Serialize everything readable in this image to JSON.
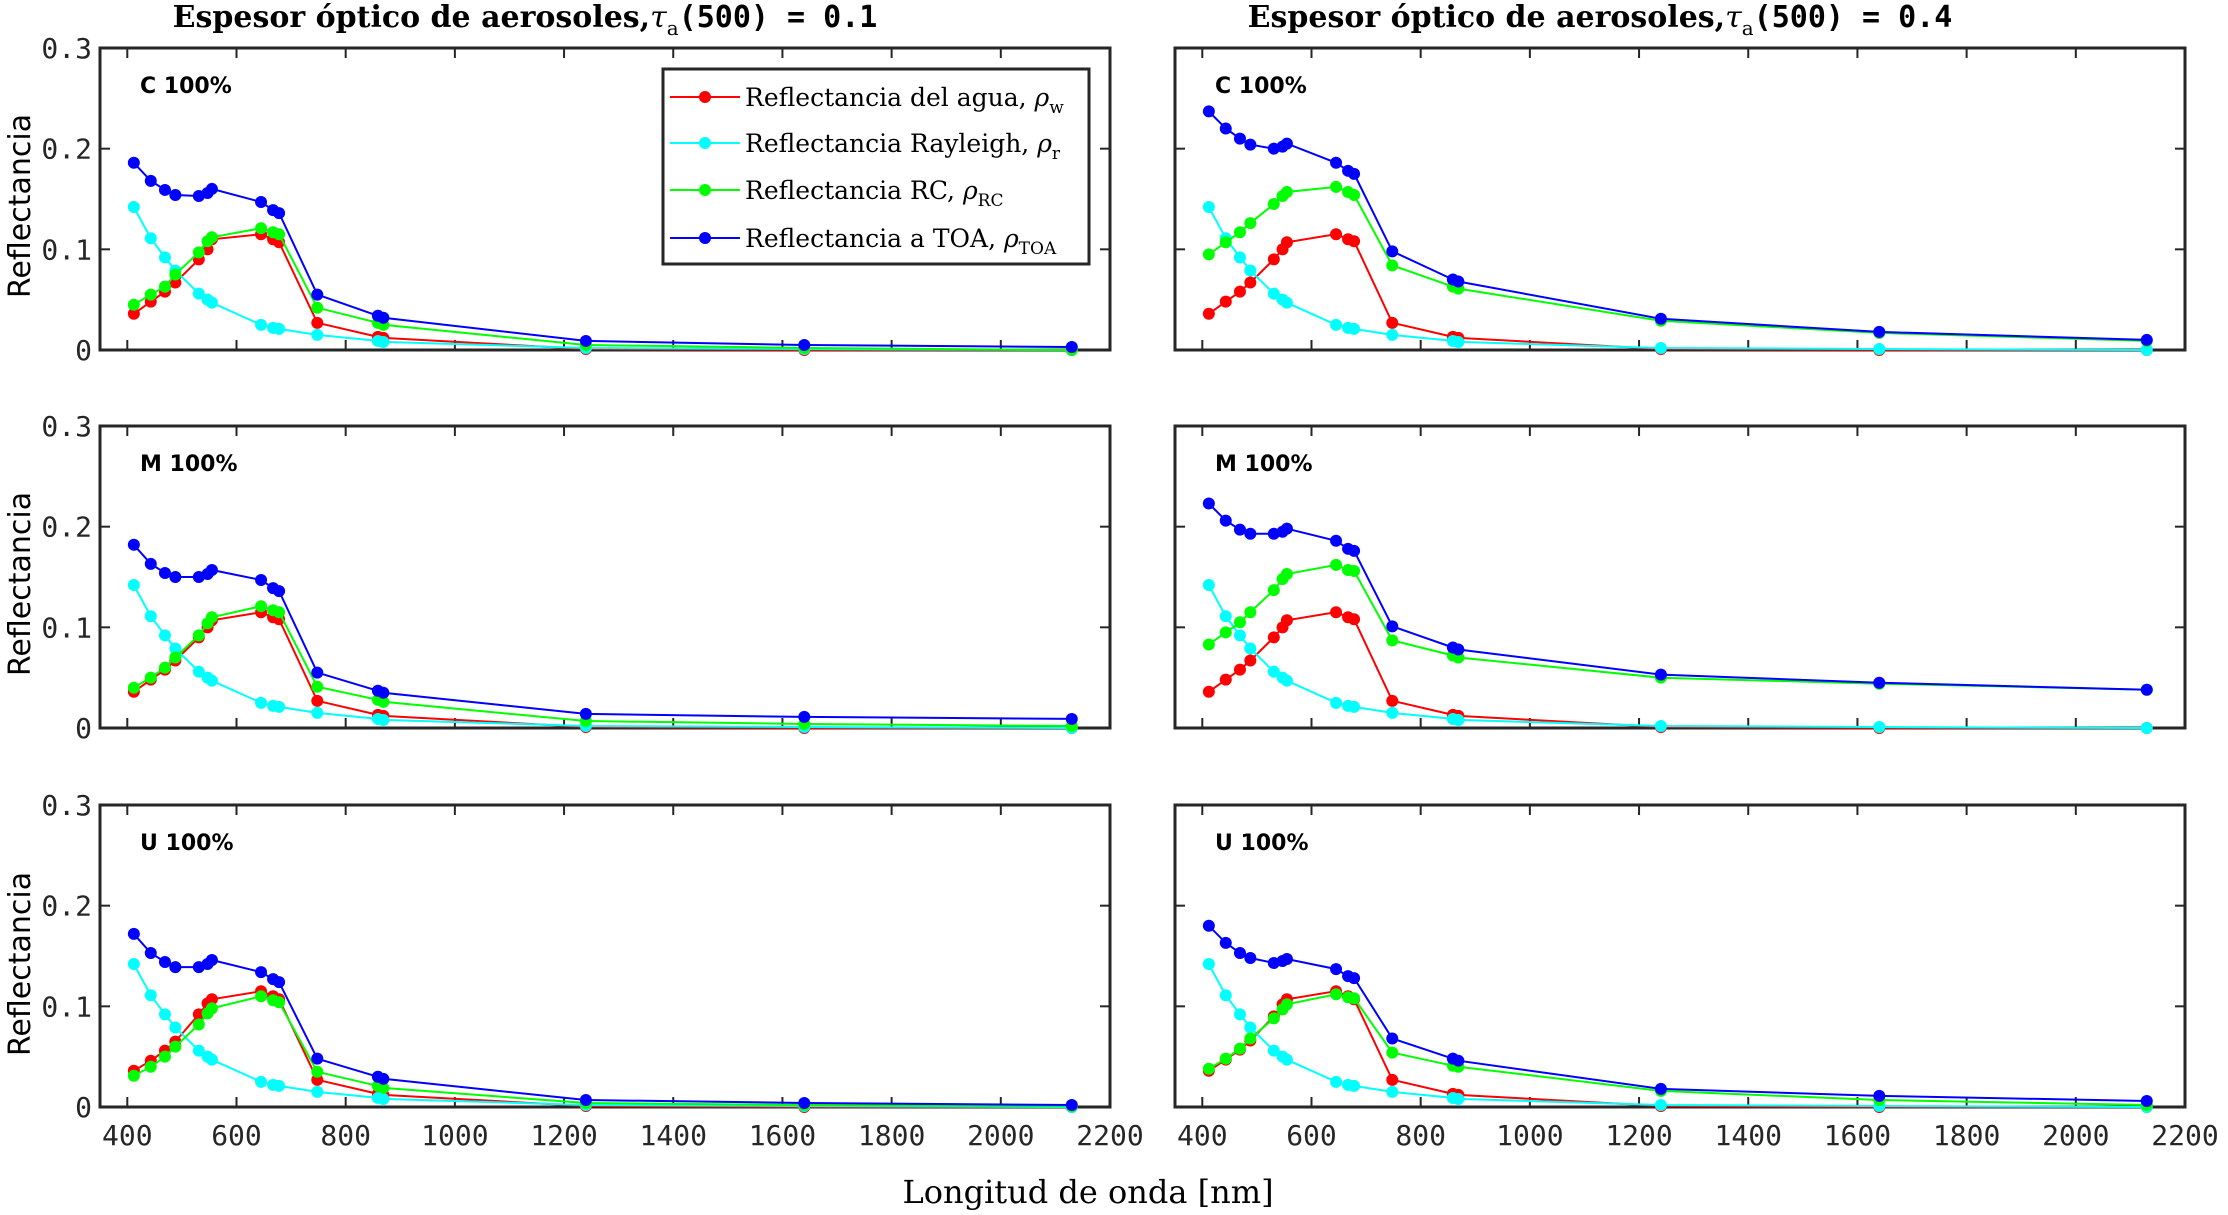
{
  "figure": {
    "columns": [
      {
        "title_prefix": "Espesor óptico de aerosoles,",
        "tau": "τ",
        "tau_sub": "a",
        "title_suffix": "(500) = 0.1"
      },
      {
        "title_prefix": "Espesor óptico de aerosoles,",
        "tau": "τ",
        "tau_sub": "a",
        "title_suffix": "(500) = 0.4"
      }
    ],
    "ylabel": "Reflectancia",
    "xlabel": "Longitud de onda [nm]",
    "legend": [
      {
        "label": "Reflectancia del agua, ",
        "rho": "ρ",
        "sub": "w",
        "color": "#ff0000"
      },
      {
        "label": "Reflectancia Rayleigh, ",
        "rho": "ρ",
        "sub": "r",
        "color": "#00ffff"
      },
      {
        "label": "Reflectancia RC, ",
        "rho": "ρ",
        "sub": "RC",
        "color": "#00ff00"
      },
      {
        "label": "Reflectancia a TOA, ",
        "rho": "ρ",
        "sub": "TOA",
        "color": "#0000ff"
      }
    ],
    "colors": {
      "water": "#ff0000",
      "rayleigh": "#00ffff",
      "rc": "#00ff00",
      "toa": "#0000ff"
    }
  },
  "chart_data": [
    {
      "type": "line",
      "panel_label": "C 100%",
      "xlim": [
        350,
        2200
      ],
      "ylim": [
        0,
        0.3
      ],
      "xticks": [
        "400",
        "600",
        "800",
        "1000",
        "1200",
        "1400",
        "1600",
        "1800",
        "2000",
        "2200"
      ],
      "yticks": [
        "0",
        "0.1",
        "0.2",
        "0.3"
      ],
      "x": [
        412,
        443,
        469,
        488,
        531,
        547,
        555,
        645,
        667,
        678,
        748,
        859,
        869,
        1240,
        1640,
        2130
      ],
      "series": [
        {
          "name": "Reflectancia del agua",
          "color": "#ff0000",
          "values": [
            0.036,
            0.048,
            0.058,
            0.067,
            0.09,
            0.1,
            0.11,
            0.115,
            0.11,
            0.107,
            0.027,
            0.013,
            0.012,
            0.001,
            0.0,
            0.0
          ]
        },
        {
          "name": "Reflectancia Rayleigh",
          "color": "#00ffff",
          "values": [
            0.142,
            0.111,
            0.092,
            0.079,
            0.056,
            0.05,
            0.047,
            0.025,
            0.022,
            0.021,
            0.015,
            0.009,
            0.008,
            0.002,
            0.001,
            0.0
          ]
        },
        {
          "name": "Reflectancia RC",
          "color": "#00ff00",
          "values": [
            0.045,
            0.055,
            0.063,
            0.075,
            0.097,
            0.108,
            0.112,
            0.121,
            0.117,
            0.115,
            0.042,
            0.027,
            0.025,
            0.005,
            0.002,
            0.0
          ]
        },
        {
          "name": "Reflectancia a TOA",
          "color": "#0000ff",
          "values": [
            0.186,
            0.168,
            0.159,
            0.154,
            0.153,
            0.156,
            0.16,
            0.147,
            0.139,
            0.136,
            0.055,
            0.034,
            0.032,
            0.009,
            0.005,
            0.003
          ]
        }
      ]
    },
    {
      "type": "line",
      "panel_label": "C 100%",
      "xlim": [
        350,
        2200
      ],
      "ylim": [
        0,
        0.3
      ],
      "xticks": [
        "400",
        "600",
        "800",
        "1000",
        "1200",
        "1400",
        "1600",
        "1800",
        "2000",
        "2200"
      ],
      "yticks": [
        "0",
        "0.1",
        "0.2",
        "0.3"
      ],
      "x": [
        412,
        443,
        469,
        488,
        531,
        547,
        555,
        645,
        667,
        678,
        748,
        859,
        869,
        1240,
        1640,
        2130
      ],
      "series": [
        {
          "name": "Reflectancia del agua",
          "color": "#ff0000",
          "values": [
            0.036,
            0.048,
            0.058,
            0.067,
            0.09,
            0.1,
            0.107,
            0.115,
            0.11,
            0.108,
            0.027,
            0.013,
            0.012,
            0.001,
            0.0,
            0.0
          ]
        },
        {
          "name": "Reflectancia Rayleigh",
          "color": "#00ffff",
          "values": [
            0.142,
            0.111,
            0.092,
            0.079,
            0.056,
            0.05,
            0.047,
            0.025,
            0.022,
            0.021,
            0.015,
            0.009,
            0.008,
            0.002,
            0.001,
            0.0
          ]
        },
        {
          "name": "Reflectancia RC",
          "color": "#00ff00",
          "values": [
            0.095,
            0.107,
            0.117,
            0.126,
            0.145,
            0.153,
            0.157,
            0.162,
            0.157,
            0.154,
            0.084,
            0.063,
            0.061,
            0.029,
            0.017,
            0.009
          ]
        },
        {
          "name": "Reflectancia a TOA",
          "color": "#0000ff",
          "values": [
            0.237,
            0.22,
            0.21,
            0.204,
            0.2,
            0.202,
            0.205,
            0.186,
            0.178,
            0.175,
            0.098,
            0.07,
            0.068,
            0.031,
            0.018,
            0.01
          ]
        }
      ]
    },
    {
      "type": "line",
      "panel_label": "M 100%",
      "xlim": [
        350,
        2200
      ],
      "ylim": [
        0,
        0.3
      ],
      "xticks": [
        "400",
        "600",
        "800",
        "1000",
        "1200",
        "1400",
        "1600",
        "1800",
        "2000",
        "2200"
      ],
      "yticks": [
        "0",
        "0.1",
        "0.2",
        "0.3"
      ],
      "x": [
        412,
        443,
        469,
        488,
        531,
        547,
        555,
        645,
        667,
        678,
        748,
        859,
        869,
        1240,
        1640,
        2130
      ],
      "series": [
        {
          "name": "Reflectancia del agua",
          "color": "#ff0000",
          "values": [
            0.036,
            0.048,
            0.058,
            0.067,
            0.09,
            0.1,
            0.107,
            0.115,
            0.11,
            0.108,
            0.027,
            0.013,
            0.012,
            0.001,
            0.0,
            0.0
          ]
        },
        {
          "name": "Reflectancia Rayleigh",
          "color": "#00ffff",
          "values": [
            0.142,
            0.111,
            0.092,
            0.079,
            0.056,
            0.05,
            0.047,
            0.025,
            0.022,
            0.021,
            0.015,
            0.009,
            0.008,
            0.002,
            0.001,
            0.0
          ]
        },
        {
          "name": "Reflectancia RC",
          "color": "#00ff00",
          "values": [
            0.04,
            0.05,
            0.06,
            0.07,
            0.092,
            0.104,
            0.11,
            0.121,
            0.117,
            0.115,
            0.041,
            0.028,
            0.026,
            0.007,
            0.004,
            0.002
          ]
        },
        {
          "name": "Reflectancia a TOA",
          "color": "#0000ff",
          "values": [
            0.182,
            0.163,
            0.154,
            0.15,
            0.15,
            0.153,
            0.157,
            0.147,
            0.139,
            0.136,
            0.055,
            0.037,
            0.035,
            0.014,
            0.011,
            0.009
          ]
        }
      ]
    },
    {
      "type": "line",
      "panel_label": "M 100%",
      "xlim": [
        350,
        2200
      ],
      "ylim": [
        0,
        0.3
      ],
      "xticks": [
        "400",
        "600",
        "800",
        "1000",
        "1200",
        "1400",
        "1600",
        "1800",
        "2000",
        "2200"
      ],
      "yticks": [
        "0",
        "0.1",
        "0.2",
        "0.3"
      ],
      "x": [
        412,
        443,
        469,
        488,
        531,
        547,
        555,
        645,
        667,
        678,
        748,
        859,
        869,
        1240,
        1640,
        2130
      ],
      "series": [
        {
          "name": "Reflectancia del agua",
          "color": "#ff0000",
          "values": [
            0.036,
            0.048,
            0.058,
            0.067,
            0.09,
            0.1,
            0.107,
            0.115,
            0.11,
            0.108,
            0.027,
            0.013,
            0.012,
            0.001,
            0.0,
            0.0
          ]
        },
        {
          "name": "Reflectancia Rayleigh",
          "color": "#00ffff",
          "values": [
            0.142,
            0.111,
            0.092,
            0.079,
            0.056,
            0.05,
            0.047,
            0.025,
            0.022,
            0.021,
            0.015,
            0.009,
            0.008,
            0.002,
            0.001,
            0.0
          ]
        },
        {
          "name": "Reflectancia RC",
          "color": "#00ff00",
          "values": [
            0.083,
            0.095,
            0.105,
            0.115,
            0.137,
            0.148,
            0.153,
            0.162,
            0.157,
            0.156,
            0.087,
            0.072,
            0.07,
            0.05,
            0.044,
            0.038
          ]
        },
        {
          "name": "Reflectancia a TOA",
          "color": "#0000ff",
          "values": [
            0.223,
            0.206,
            0.197,
            0.193,
            0.193,
            0.195,
            0.198,
            0.186,
            0.178,
            0.176,
            0.101,
            0.08,
            0.078,
            0.053,
            0.045,
            0.038
          ]
        }
      ]
    },
    {
      "type": "line",
      "panel_label": "U 100%",
      "xlim": [
        350,
        2200
      ],
      "ylim": [
        0,
        0.3
      ],
      "xticks": [
        "400",
        "600",
        "800",
        "1000",
        "1200",
        "1400",
        "1600",
        "1800",
        "2000",
        "2200"
      ],
      "yticks": [
        "0",
        "0.1",
        "0.2",
        "0.3"
      ],
      "x": [
        412,
        443,
        469,
        488,
        531,
        547,
        555,
        645,
        667,
        678,
        748,
        859,
        869,
        1240,
        1640,
        2130
      ],
      "series": [
        {
          "name": "Reflectancia del agua",
          "color": "#ff0000",
          "values": [
            0.036,
            0.046,
            0.056,
            0.065,
            0.092,
            0.103,
            0.107,
            0.115,
            0.11,
            0.107,
            0.027,
            0.013,
            0.012,
            0.001,
            0.0,
            0.0
          ]
        },
        {
          "name": "Reflectancia Rayleigh",
          "color": "#00ffff",
          "values": [
            0.142,
            0.111,
            0.092,
            0.079,
            0.056,
            0.05,
            0.047,
            0.025,
            0.022,
            0.021,
            0.015,
            0.009,
            0.008,
            0.002,
            0.001,
            0.0
          ]
        },
        {
          "name": "Reflectancia RC",
          "color": "#00ff00",
          "values": [
            0.031,
            0.04,
            0.05,
            0.06,
            0.082,
            0.093,
            0.098,
            0.11,
            0.106,
            0.104,
            0.035,
            0.021,
            0.019,
            0.004,
            0.002,
            0.001
          ]
        },
        {
          "name": "Reflectancia a TOA",
          "color": "#0000ff",
          "values": [
            0.172,
            0.153,
            0.144,
            0.139,
            0.139,
            0.142,
            0.146,
            0.134,
            0.127,
            0.124,
            0.048,
            0.03,
            0.028,
            0.007,
            0.004,
            0.002
          ]
        }
      ]
    },
    {
      "type": "line",
      "panel_label": "U 100%",
      "xlim": [
        350,
        2200
      ],
      "ylim": [
        0,
        0.3
      ],
      "xticks": [
        "400",
        "600",
        "800",
        "1000",
        "1200",
        "1400",
        "1600",
        "1800",
        "2000",
        "2200"
      ],
      "yticks": [
        "0",
        "0.1",
        "0.2",
        "0.3"
      ],
      "x": [
        412,
        443,
        469,
        488,
        531,
        547,
        555,
        645,
        667,
        678,
        748,
        859,
        869,
        1240,
        1640,
        2130
      ],
      "series": [
        {
          "name": "Reflectancia del agua",
          "color": "#ff0000",
          "values": [
            0.036,
            0.047,
            0.057,
            0.066,
            0.09,
            0.102,
            0.107,
            0.115,
            0.11,
            0.107,
            0.027,
            0.013,
            0.012,
            0.001,
            0.0,
            0.0
          ]
        },
        {
          "name": "Reflectancia Rayleigh",
          "color": "#00ffff",
          "values": [
            0.142,
            0.111,
            0.092,
            0.079,
            0.056,
            0.05,
            0.047,
            0.025,
            0.022,
            0.021,
            0.015,
            0.009,
            0.008,
            0.002,
            0.001,
            0.0
          ]
        },
        {
          "name": "Reflectancia RC",
          "color": "#00ff00",
          "values": [
            0.038,
            0.048,
            0.058,
            0.068,
            0.088,
            0.097,
            0.102,
            0.112,
            0.109,
            0.108,
            0.054,
            0.041,
            0.04,
            0.016,
            0.007,
            0.002
          ]
        },
        {
          "name": "Reflectancia a TOA",
          "color": "#0000ff",
          "values": [
            0.18,
            0.163,
            0.153,
            0.148,
            0.143,
            0.145,
            0.147,
            0.137,
            0.13,
            0.128,
            0.068,
            0.048,
            0.046,
            0.018,
            0.011,
            0.006
          ]
        }
      ]
    }
  ]
}
